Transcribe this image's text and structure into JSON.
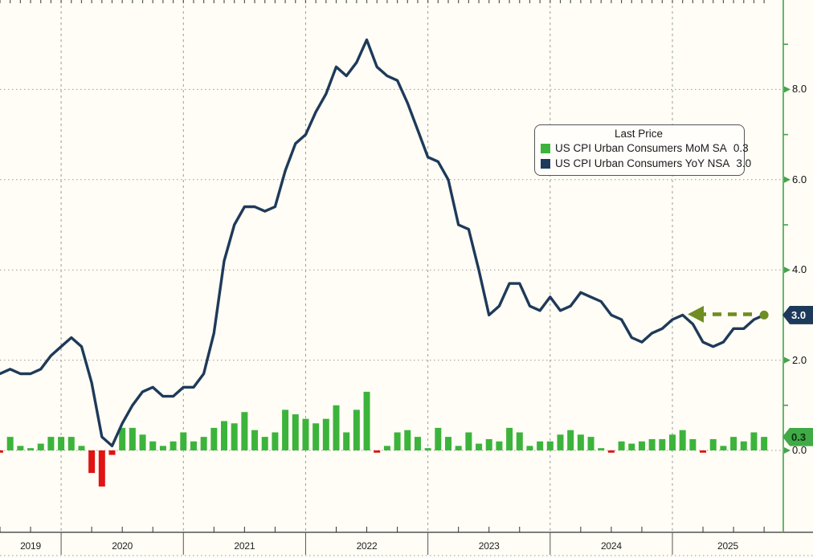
{
  "chart_data": {
    "type": "combo",
    "x_axis": {
      "start": "2019-06",
      "end": "2025-09",
      "freq": "monthly",
      "year_tick_labels": [
        "2019",
        "2020",
        "2021",
        "2022",
        "2023",
        "2024",
        "2025"
      ]
    },
    "y_axis_right": {
      "tick_labels": [
        "0.0",
        "2.0",
        "4.0",
        "6.0",
        "8.0"
      ],
      "tick_values": [
        0,
        2,
        4,
        6,
        8
      ],
      "minor_tick_values": [
        1,
        5,
        7,
        9
      ],
      "ylim": [
        -1.8,
        10.0
      ],
      "axis_color": "#44a34b",
      "grid": "dotted"
    },
    "series": [
      {
        "name": "US CPI Urban Consumers MoM SA",
        "type": "bar",
        "last_price": 0.3,
        "pos_color": "#3cb43c",
        "neg_color": "#e01414",
        "values": [
          -0.05,
          0.3,
          0.1,
          0.05,
          0.15,
          0.3,
          0.3,
          0.3,
          0.1,
          -0.5,
          -0.8,
          -0.1,
          0.5,
          0.5,
          0.35,
          0.2,
          0.1,
          0.2,
          0.4,
          0.2,
          0.3,
          0.5,
          0.65,
          0.6,
          0.85,
          0.45,
          0.3,
          0.4,
          0.9,
          0.8,
          0.7,
          0.6,
          0.7,
          1.0,
          0.4,
          0.9,
          1.3,
          -0.05,
          0.1,
          0.4,
          0.45,
          0.3,
          0.05,
          0.5,
          0.3,
          0.1,
          0.4,
          0.15,
          0.25,
          0.2,
          0.5,
          0.4,
          0.1,
          0.2,
          0.2,
          0.35,
          0.45,
          0.35,
          0.3,
          0.05,
          -0.05,
          0.2,
          0.15,
          0.2,
          0.25,
          0.25,
          0.35,
          0.45,
          0.25,
          -0.05,
          0.25,
          0.1,
          0.3,
          0.2,
          0.4,
          0.3
        ]
      },
      {
        "name": "US CPI Urban Consumers YoY NSA",
        "type": "line",
        "last_price": 3.0,
        "color": "#1e3a5a",
        "values": [
          1.7,
          1.8,
          1.7,
          1.7,
          1.8,
          2.1,
          2.3,
          2.5,
          2.3,
          1.5,
          0.3,
          0.1,
          0.6,
          1.0,
          1.3,
          1.4,
          1.2,
          1.2,
          1.4,
          1.4,
          1.7,
          2.6,
          4.2,
          5.0,
          5.4,
          5.4,
          5.3,
          5.4,
          6.2,
          6.8,
          7.0,
          7.5,
          7.9,
          8.5,
          8.3,
          8.6,
          9.1,
          8.5,
          8.3,
          8.2,
          7.7,
          7.1,
          6.5,
          6.4,
          6.0,
          5.0,
          4.9,
          4.0,
          3.0,
          3.2,
          3.7,
          3.7,
          3.2,
          3.1,
          3.4,
          3.1,
          3.2,
          3.5,
          3.4,
          3.3,
          3.0,
          2.9,
          2.5,
          2.4,
          2.6,
          2.7,
          2.9,
          3.0,
          2.8,
          2.4,
          2.3,
          2.4,
          2.7,
          2.7,
          2.9,
          3.0
        ]
      }
    ],
    "legend": {
      "title": "Last Price",
      "rows": [
        {
          "label": "US CPI Urban Consumers MoM SA",
          "value": "0.3"
        },
        {
          "label": "US CPI Urban Consumers YoY NSA",
          "value": "3.0"
        }
      ]
    },
    "price_badges": [
      {
        "text": "3.0",
        "value": 3.0,
        "bg": "#1e3a5a",
        "fg": "#ffffff"
      },
      {
        "text": "0.3",
        "value": 0.3,
        "bg": "#3faa46",
        "fg": "#0d2f10"
      }
    ],
    "annotation_arrow": {
      "direction": "left",
      "dashed": true,
      "color": "#6f8d22",
      "y_value": 3.0
    }
  }
}
